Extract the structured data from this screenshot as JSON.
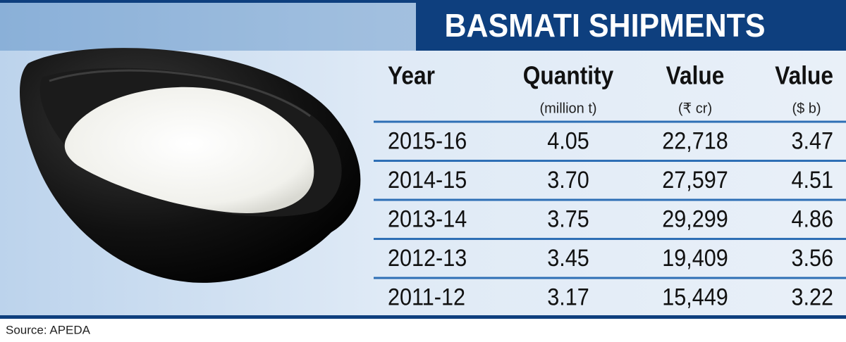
{
  "header": {
    "title": "BASMATI SHIPMENTS"
  },
  "table": {
    "columns": [
      {
        "label": "Year"
      },
      {
        "label": "Quantity",
        "unit": "(million t)"
      },
      {
        "label": "Value",
        "unit": "(₹ cr)"
      },
      {
        "label": "Value",
        "unit": "($ b)"
      }
    ],
    "rows": [
      [
        "2015-16",
        "4.05",
        "22,718",
        "3.47"
      ],
      [
        "2014-15",
        "3.70",
        "27,597",
        "4.51"
      ],
      [
        "2013-14",
        "3.75",
        "29,299",
        "4.86"
      ],
      [
        "2012-13",
        "3.45",
        "19,409",
        "3.56"
      ],
      [
        "2011-12",
        "3.17",
        "15,449",
        "3.22"
      ]
    ]
  },
  "footer": {
    "source": "Source: APEDA"
  }
}
